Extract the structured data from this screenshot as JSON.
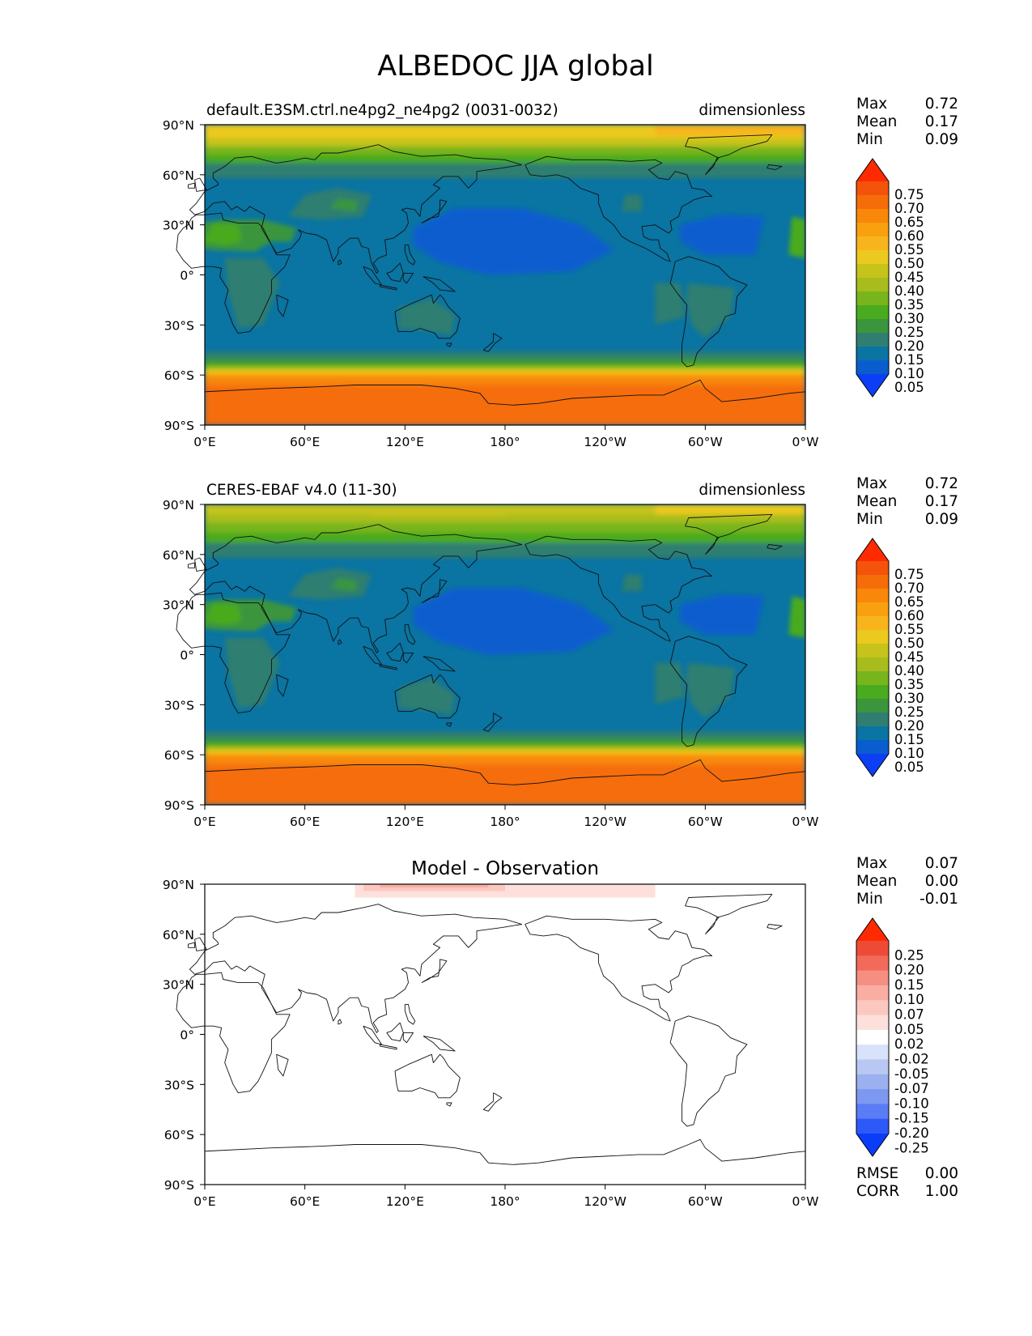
{
  "figure": {
    "title": "ALBEDOC JJA global"
  },
  "colors": {
    "full": [
      "#0c3ef6",
      "#0a5dcf",
      "#0a74a2",
      "#2f7e71",
      "#3a953c",
      "#4aab1e",
      "#78b51d",
      "#a8bd1d",
      "#c6c31a",
      "#ecc91f",
      "#f8b41d",
      "#f9a00f",
      "#f8870a",
      "#f56d09",
      "#f3530a",
      "#ff2a00"
    ],
    "diff": [
      "#0a3cfa",
      "#2e59f9",
      "#5a7cf4",
      "#7d98f1",
      "#9bb0ef",
      "#b8c8f3",
      "#d9e2fb",
      "#ffffff",
      "#fde0dc",
      "#fbc8c0",
      "#f9ada3",
      "#f68f82",
      "#f26a59",
      "#ee4b37",
      "#ff2a00"
    ]
  },
  "panels": [
    {
      "left_title": "default.E3SM.ctrl.ne4pg2_ne4pg2 (0031-0032)",
      "center_title": "",
      "right_title": "dimensionless",
      "stats": {
        "labels": [
          "Max",
          "Mean",
          "Min"
        ],
        "values": [
          "0.72",
          "0.17",
          "0.09"
        ]
      },
      "colorbar_ticks": [
        "0.05",
        "0.10",
        "0.15",
        "0.20",
        "0.25",
        "0.30",
        "0.35",
        "0.40",
        "0.45",
        "0.50",
        "0.55",
        "0.60",
        "0.65",
        "0.70",
        "0.75"
      ]
    },
    {
      "left_title": "CERES-EBAF v4.0 (11-30)",
      "center_title": "",
      "right_title": "dimensionless",
      "stats": {
        "labels": [
          "Max",
          "Mean",
          "Min"
        ],
        "values": [
          "0.72",
          "0.17",
          "0.09"
        ]
      },
      "colorbar_ticks": [
        "0.05",
        "0.10",
        "0.15",
        "0.20",
        "0.25",
        "0.30",
        "0.35",
        "0.40",
        "0.45",
        "0.50",
        "0.55",
        "0.60",
        "0.65",
        "0.70",
        "0.75"
      ]
    },
    {
      "left_title": "",
      "center_title": "Model - Observation",
      "right_title": "",
      "stats": {
        "labels": [
          "Max",
          "Mean",
          "Min"
        ],
        "values": [
          "0.07",
          "0.00",
          "-0.01"
        ]
      },
      "colorbar_ticks": [
        "-0.25",
        "-0.20",
        "-0.15",
        "-0.10",
        "-0.07",
        "-0.05",
        "-0.02",
        "0.02",
        "0.05",
        "0.07",
        "0.10",
        "0.15",
        "0.20",
        "0.25"
      ],
      "metrics": {
        "labels": [
          "RMSE",
          "CORR"
        ],
        "values": [
          "0.00",
          "1.00"
        ]
      }
    }
  ],
  "chart_data": {
    "type": "heatmap",
    "title": "ALBEDOC JJA global",
    "x_ticks": [
      "0°E",
      "60°E",
      "120°E",
      "180°",
      "120°W",
      "60°W",
      "0°W"
    ],
    "y_ticks": [
      "90°N",
      "60°N",
      "30°N",
      "0°",
      "30°S",
      "60°S",
      "90°S"
    ],
    "xlim": [
      0,
      360
    ],
    "ylim": [
      -90,
      90
    ],
    "units": "dimensionless",
    "fields": [
      {
        "name": "default.E3SM.ctrl.ne4pg2_ne4pg2 (0031-0032)",
        "max": 0.72,
        "mean": 0.17,
        "min": 0.09
      },
      {
        "name": "CERES-EBAF v4.0 (11-30)",
        "max": 0.72,
        "mean": 0.17,
        "min": 0.09
      },
      {
        "name": "Model - Observation",
        "max": 0.07,
        "mean": 0.0,
        "min": -0.01,
        "rmse": 0.0,
        "corr": 1.0
      }
    ]
  }
}
